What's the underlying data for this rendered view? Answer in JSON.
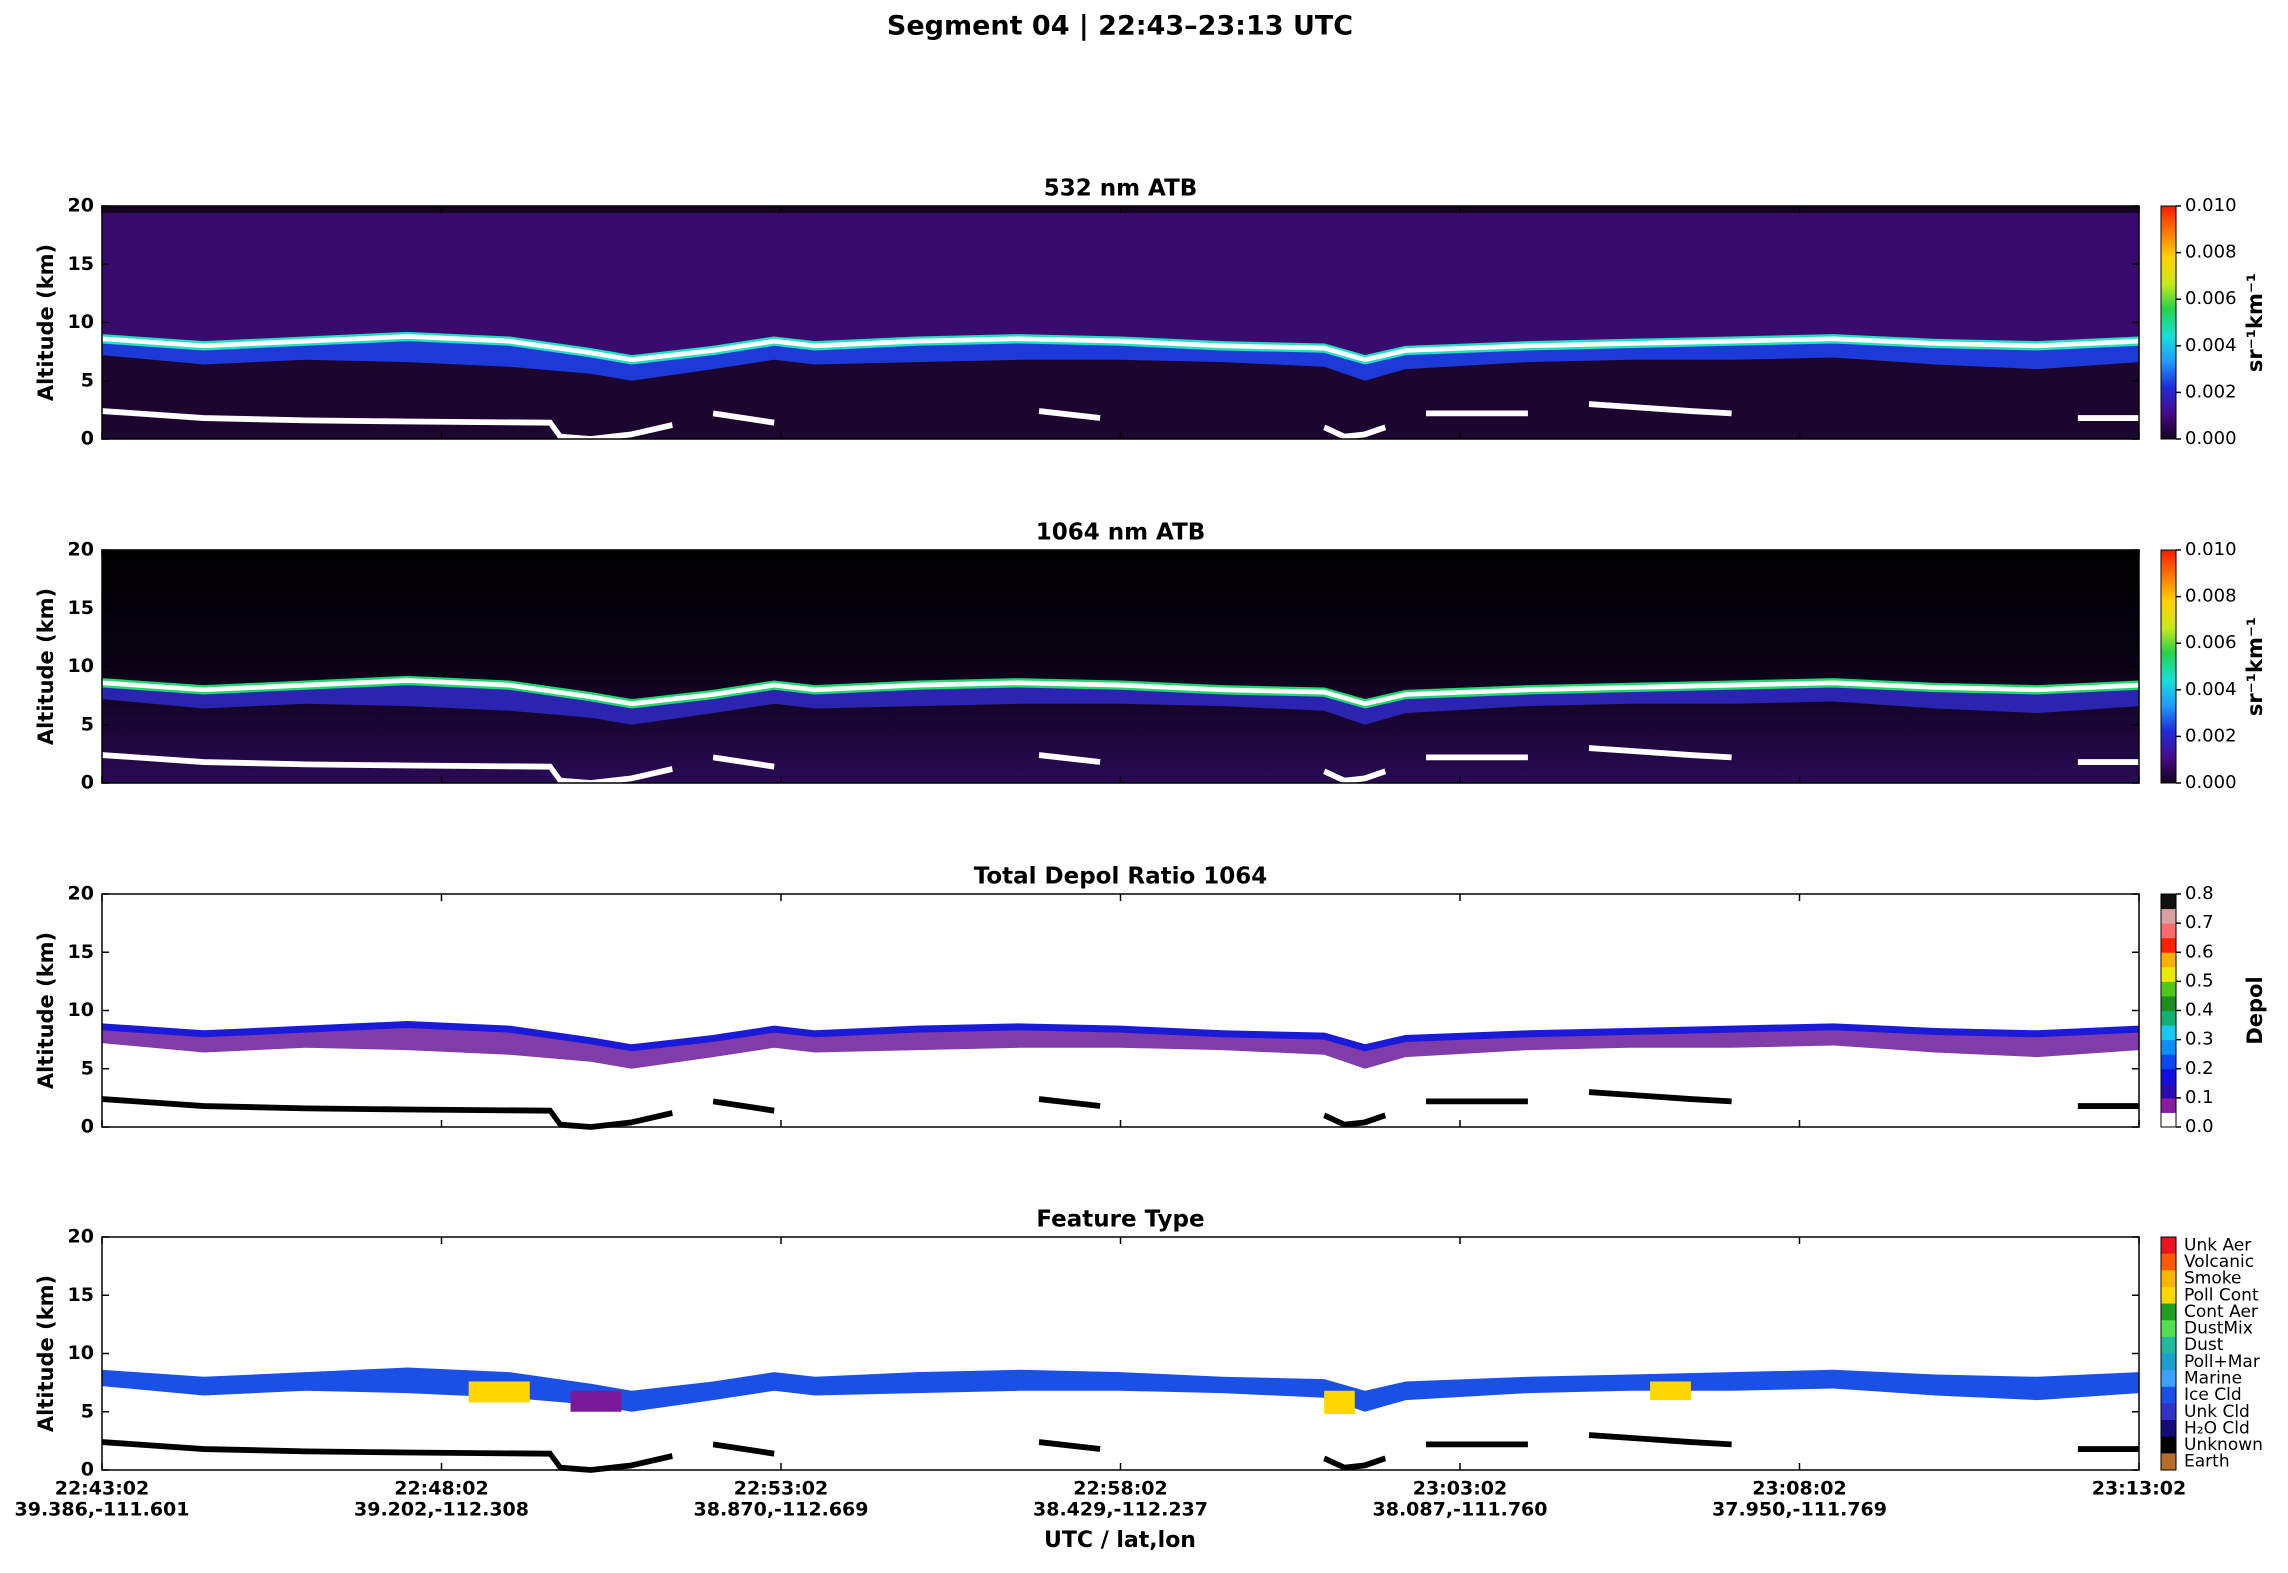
{
  "title": "Segment 04  |  22:43–23:13 UTC",
  "xlabel": "UTC / lat,lon",
  "xticks": [
    {
      "label": "22:43:02",
      "sublabel": "39.386,-111.601"
    },
    {
      "label": "22:48:02",
      "sublabel": "39.202,-112.308"
    },
    {
      "label": "22:53:02",
      "sublabel": "38.870,-112.669"
    },
    {
      "label": "22:58:02",
      "sublabel": "38.429,-112.237"
    },
    {
      "label": "23:03:02",
      "sublabel": "38.087,-111.760"
    },
    {
      "label": "23:08:02",
      "sublabel": "37.950,-111.769"
    },
    {
      "label": "23:13:02",
      "sublabel": null
    }
  ],
  "chart_data": [
    {
      "type": "heatmap",
      "title": "532 nm ATB",
      "ylabel": "Altitude (km)",
      "ylim": [
        0,
        20
      ],
      "yticks": [
        0,
        5,
        10,
        15,
        20
      ],
      "colorbar": {
        "label": "sr⁻¹km⁻¹",
        "discrete": false,
        "lim": [
          0,
          0.01
        ],
        "colors": [
          "#14001e",
          "#4b0a8c",
          "#1d2cd8",
          "#1f9bff",
          "#18e0d8",
          "#22d34a",
          "#c8e81c",
          "#ffd200",
          "#ff7a00",
          "#ff1a00"
        ],
        "ticks": [
          {
            "value": 0,
            "label": "0.000"
          },
          {
            "value": 0.002,
            "label": "0.002"
          },
          {
            "value": 0.004,
            "label": "0.004"
          },
          {
            "value": 0.006,
            "label": "0.006"
          },
          {
            "value": 0.008,
            "label": "0.008"
          },
          {
            "value": 0.01,
            "label": "0.010"
          }
        ]
      }
    },
    {
      "type": "heatmap",
      "title": "1064 nm ATB",
      "ylabel": "Altitude (km)",
      "ylim": [
        0,
        20
      ],
      "yticks": [
        0,
        5,
        10,
        15,
        20
      ],
      "colorbar": {
        "label": "sr⁻¹km⁻¹",
        "discrete": false,
        "lim": [
          0,
          0.01
        ],
        "colors": [
          "#14001e",
          "#4b0a8c",
          "#1d2cd8",
          "#1f9bff",
          "#18e0d8",
          "#22d34a",
          "#c8e81c",
          "#ffd200",
          "#ff7a00",
          "#ff1a00"
        ],
        "ticks": [
          {
            "value": 0,
            "label": "0.000"
          },
          {
            "value": 0.002,
            "label": "0.002"
          },
          {
            "value": 0.004,
            "label": "0.004"
          },
          {
            "value": 0.006,
            "label": "0.006"
          },
          {
            "value": 0.008,
            "label": "0.008"
          },
          {
            "value": 0.01,
            "label": "0.010"
          }
        ]
      }
    },
    {
      "type": "heatmap",
      "title": "Total Depol Ratio 1064",
      "ylabel": "Altitude (km)",
      "ylim": [
        0,
        20
      ],
      "yticks": [
        0,
        5,
        10,
        15,
        20
      ],
      "colorbar": {
        "label": "Depol",
        "discrete": true,
        "lim": [
          0,
          0.8
        ],
        "colors": [
          "#ffffff",
          "#8a1aa0",
          "#2a0ab4",
          "#1010e0",
          "#0a48f0",
          "#0a90f8",
          "#18c8f0",
          "#10b070",
          "#1e8c1e",
          "#50c818",
          "#e8e800",
          "#ffb000",
          "#ff2000",
          "#ff6a6a",
          "#d8a0a0",
          "#101010"
        ],
        "ticks": [
          {
            "value": 0,
            "label": "0.0"
          },
          0.1,
          0.2,
          0.3,
          0.4,
          0.5,
          0.6,
          0.7,
          0.8
        ]
      }
    },
    {
      "type": "heatmap",
      "title": "Feature Type",
      "ylabel": "Altitude (km)",
      "ylim": [
        0,
        20
      ],
      "yticks": [
        0,
        5,
        10,
        15,
        20
      ],
      "colorbar": {
        "discrete": true,
        "categories": [
          "Unk Aer",
          "Volcanic",
          "Smoke",
          "Poll Cont",
          "Cont Aer",
          "DustMix",
          "Dust",
          "Poll+Mar",
          "Marine",
          "Ice Cld",
          "Unk Cld",
          "H₂O Cld",
          "Unknown",
          "Earth"
        ],
        "colors": [
          "#e8141e",
          "#ff5a00",
          "#ffb400",
          "#ffd700",
          "#1ea01e",
          "#50e050",
          "#22b8a0",
          "#1aa0d0",
          "#3ca0ff",
          "#1a50e6",
          "#3232c8",
          "#140a78",
          "#000000",
          "#b46e28"
        ]
      }
    }
  ]
}
